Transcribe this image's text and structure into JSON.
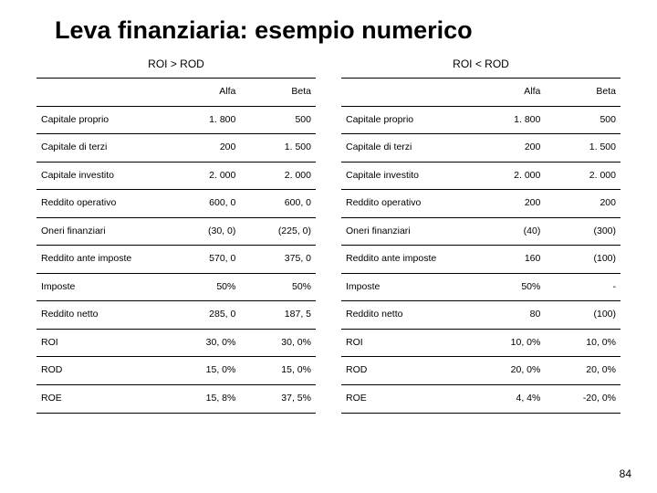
{
  "title": "Leva finanziaria: esempio numerico",
  "pageNumber": "84",
  "left": {
    "heading": "ROI > ROD",
    "columns": [
      "",
      "Alfa",
      "Beta"
    ],
    "rows": [
      [
        "Capitale proprio",
        "1. 800",
        "500"
      ],
      [
        "Capitale di terzi",
        "200",
        "1. 500"
      ],
      [
        "Capitale investito",
        "2. 000",
        "2. 000"
      ],
      [
        "Reddito operativo",
        "600, 0",
        "600, 0"
      ],
      [
        "Oneri finanziari",
        "(30, 0)",
        "(225, 0)"
      ],
      [
        "Reddito ante imposte",
        "570, 0",
        "375, 0"
      ],
      [
        "Imposte",
        "50%",
        "50%"
      ],
      [
        "Reddito netto",
        "285, 0",
        "187, 5"
      ],
      [
        "ROI",
        "30, 0%",
        "30, 0%"
      ],
      [
        "ROD",
        "15, 0%",
        "15, 0%"
      ],
      [
        "ROE",
        "15, 8%",
        "37, 5%"
      ]
    ]
  },
  "right": {
    "heading": "ROI < ROD",
    "columns": [
      "",
      "Alfa",
      "Beta"
    ],
    "rows": [
      [
        "Capitale proprio",
        "1. 800",
        "500"
      ],
      [
        "Capitale di terzi",
        "200",
        "1. 500"
      ],
      [
        "Capitale investito",
        "2. 000",
        "2. 000"
      ],
      [
        "Reddito operativo",
        "200",
        "200"
      ],
      [
        "Oneri finanziari",
        "(40)",
        "(300)"
      ],
      [
        "Reddito ante imposte",
        "160",
        "(100)"
      ],
      [
        "Imposte",
        "50%",
        "-"
      ],
      [
        "Reddito netto",
        "80",
        "(100)"
      ],
      [
        "ROI",
        "10, 0%",
        "10, 0%"
      ],
      [
        "ROD",
        "20, 0%",
        "20, 0%"
      ],
      [
        "ROE",
        "4, 4%",
        "-20, 0%"
      ]
    ]
  }
}
